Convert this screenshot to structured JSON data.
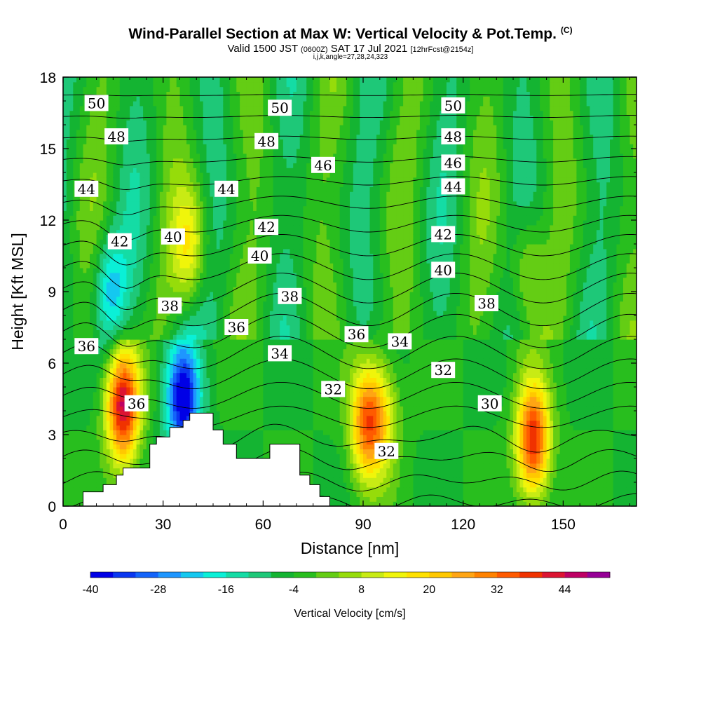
{
  "header": {
    "title": "Wind-Parallel Section at Max W: Vertical Velocity & Pot.Temp.",
    "copyright": "(C)",
    "valid_main": "Valid 1500 JST",
    "valid_utc": "(0600Z)",
    "valid_date": "SAT 17 Jul 2021",
    "forecast": "[12hrFcst@2154z]",
    "params": "i,j,k,angle=27,28,24,323"
  },
  "chart_data": {
    "type": "heatmap",
    "xlabel": "Distance [nm]",
    "ylabel": "Height [Kft MSL]",
    "xlim": [
      0,
      172
    ],
    "ylim": [
      0,
      18
    ],
    "xticks": [
      0,
      30,
      60,
      90,
      120,
      150
    ],
    "yticks": [
      0,
      3,
      6,
      9,
      12,
      15,
      18
    ],
    "colorbar": {
      "label": "Vertical Velocity [cm/s]",
      "min": -40,
      "max": 48,
      "step": 4,
      "ticks": [
        -40,
        -28,
        -16,
        -4,
        8,
        20,
        32,
        44
      ],
      "colors": [
        "#0000e6",
        "#0a37f0",
        "#1464fa",
        "#1e96ff",
        "#14c8f0",
        "#0af0d7",
        "#14dca5",
        "#1ec878",
        "#14b432",
        "#28be1e",
        "#64cd14",
        "#96dc0a",
        "#c8eb14",
        "#f0f50a",
        "#ffe100",
        "#ffc800",
        "#ffa514",
        "#ff8200",
        "#ff5a00",
        "#f03200",
        "#dc1432",
        "#be0064",
        "#960096"
      ]
    },
    "features": [
      {
        "name": "updraft-1",
        "x": 18,
        "y": 4.2,
        "w_max": 44
      },
      {
        "name": "updraft-2",
        "x": 38,
        "y": 11.0,
        "w_max": 14
      },
      {
        "name": "downdraft-1",
        "x": 36,
        "y": 4.5,
        "w_min": -40
      },
      {
        "name": "downdraft-2",
        "x": 14,
        "y": 9.0,
        "w_min": -22
      },
      {
        "name": "updraft-3",
        "x": 91,
        "y": 3.5,
        "w_max": 30
      },
      {
        "name": "updraft-4",
        "x": 96,
        "y": 3.8,
        "w_max": 12
      },
      {
        "name": "updraft-5",
        "x": 141,
        "y": 2.8,
        "w_max": 40
      },
      {
        "name": "updraft-6",
        "x": 139,
        "y": 10.0,
        "w_max": 8
      }
    ],
    "terrain": [
      [
        0,
        0
      ],
      [
        6,
        0
      ],
      [
        6,
        0.6
      ],
      [
        12,
        0.6
      ],
      [
        12,
        0.9
      ],
      [
        16,
        0.9
      ],
      [
        16,
        1.3
      ],
      [
        18,
        1.3
      ],
      [
        18,
        1.6
      ],
      [
        26,
        1.6
      ],
      [
        26,
        2.6
      ],
      [
        28,
        2.6
      ],
      [
        28,
        2.9
      ],
      [
        32,
        2.9
      ],
      [
        32,
        3.3
      ],
      [
        36,
        3.3
      ],
      [
        36,
        3.6
      ],
      [
        38,
        3.6
      ],
      [
        38,
        3.9
      ],
      [
        45,
        3.9
      ],
      [
        45,
        3.2
      ],
      [
        48,
        3.2
      ],
      [
        48,
        2.6
      ],
      [
        52,
        2.6
      ],
      [
        52,
        2.0
      ],
      [
        58,
        2.0
      ],
      [
        58,
        2.0
      ],
      [
        62,
        2.0
      ],
      [
        62,
        2.6
      ],
      [
        71,
        2.6
      ],
      [
        71,
        1.3
      ],
      [
        74,
        1.3
      ],
      [
        74,
        0.9
      ],
      [
        77,
        0.9
      ],
      [
        77,
        0.4
      ],
      [
        80,
        0.4
      ],
      [
        80,
        0
      ],
      [
        172,
        0
      ]
    ],
    "contours": {
      "variable": "Pot.Temp.",
      "labels": [
        {
          "text": "50",
          "x": 10,
          "y": 16.9
        },
        {
          "text": "50",
          "x": 65,
          "y": 16.7
        },
        {
          "text": "50",
          "x": 117,
          "y": 16.8
        },
        {
          "text": "48",
          "x": 16,
          "y": 15.5
        },
        {
          "text": "48",
          "x": 61,
          "y": 15.3
        },
        {
          "text": "48",
          "x": 117,
          "y": 15.5
        },
        {
          "text": "46",
          "x": 78,
          "y": 14.3
        },
        {
          "text": "46",
          "x": 117,
          "y": 14.4
        },
        {
          "text": "44",
          "x": 7,
          "y": 13.3
        },
        {
          "text": "44",
          "x": 49,
          "y": 13.3
        },
        {
          "text": "44",
          "x": 117,
          "y": 13.4
        },
        {
          "text": "42",
          "x": 17,
          "y": 11.1
        },
        {
          "text": "42",
          "x": 61,
          "y": 11.7
        },
        {
          "text": "42",
          "x": 114,
          "y": 11.4
        },
        {
          "text": "40",
          "x": 33,
          "y": 11.3
        },
        {
          "text": "40",
          "x": 59,
          "y": 10.5
        },
        {
          "text": "40",
          "x": 114,
          "y": 9.9
        },
        {
          "text": "38",
          "x": 32,
          "y": 8.4
        },
        {
          "text": "38",
          "x": 68,
          "y": 8.8
        },
        {
          "text": "38",
          "x": 127,
          "y": 8.5
        },
        {
          "text": "36",
          "x": 7,
          "y": 6.7
        },
        {
          "text": "36",
          "x": 52,
          "y": 7.5
        },
        {
          "text": "36",
          "x": 88,
          "y": 7.2
        },
        {
          "text": "36",
          "x": 22,
          "y": 4.3
        },
        {
          "text": "34",
          "x": 65,
          "y": 6.4
        },
        {
          "text": "34",
          "x": 101,
          "y": 6.9
        },
        {
          "text": "32",
          "x": 81,
          "y": 4.9
        },
        {
          "text": "32",
          "x": 114,
          "y": 5.7
        },
        {
          "text": "32",
          "x": 97,
          "y": 2.3
        },
        {
          "text": "30",
          "x": 128,
          "y": 4.3
        }
      ]
    }
  }
}
